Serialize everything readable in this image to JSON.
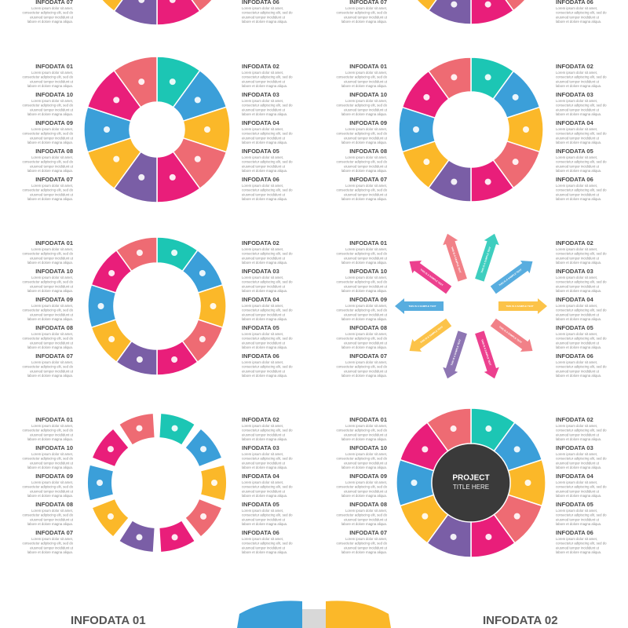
{
  "infodata": [
    "INFODATA 01",
    "INFODATA 02",
    "INFODATA 03",
    "INFODATA 04",
    "INFODATA 05",
    "INFODATA 06",
    "INFODATA 07",
    "INFODATA 08",
    "INFODATA 09",
    "INFODATA 10"
  ],
  "lorem": [
    "Lorem ipsum dolor sit amet,",
    "consectetur adipiscing elit, sed do",
    "eiusmod tempor incididunt ut",
    "labore et dolore magna aliqua."
  ],
  "arrow_text": "THIS IS A SAMPLE TEXT",
  "center": {
    "line1": "PROJECT",
    "line2": "TITLE HERE"
  },
  "bottom": {
    "left": "INFODATA 01",
    "right": "INFODATA 02"
  }
}
